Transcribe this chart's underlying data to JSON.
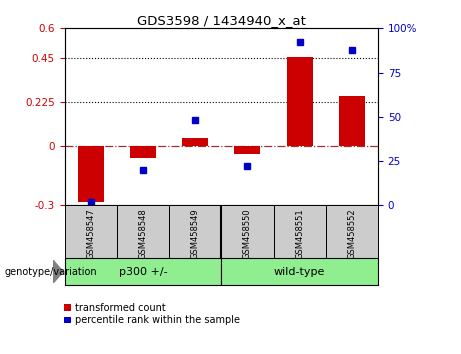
{
  "title": "GDS3598 / 1434940_x_at",
  "samples": [
    "GSM458547",
    "GSM458548",
    "GSM458549",
    "GSM458550",
    "GSM458551",
    "GSM458552"
  ],
  "red_values": [
    -0.285,
    -0.06,
    0.04,
    -0.04,
    0.455,
    0.255
  ],
  "blue_values": [
    2,
    20,
    48,
    22,
    92,
    88
  ],
  "ylim_left": [
    -0.3,
    0.6
  ],
  "ylim_right": [
    0,
    100
  ],
  "yticks_left": [
    -0.3,
    0,
    0.225,
    0.45,
    0.6
  ],
  "yticks_right": [
    0,
    25,
    50,
    75,
    100
  ],
  "hlines": [
    0.225,
    0.45
  ],
  "group_label": "genotype/variation",
  "group1_label": "p300 +/-",
  "group2_label": "wild-type",
  "group_color": "#90EE90",
  "legend_red": "transformed count",
  "legend_blue": "percentile rank within the sample",
  "red_color": "#CC0000",
  "blue_color": "#0000CC",
  "zero_line_color": "#CC0000",
  "bar_width": 0.5
}
